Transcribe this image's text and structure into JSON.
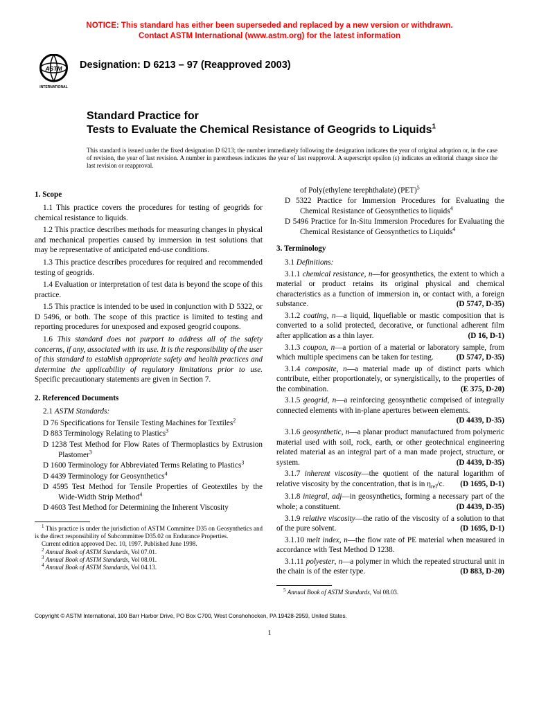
{
  "notice": {
    "line1": "NOTICE: This standard has either been superseded and replaced by a new version or withdrawn.",
    "line2": "Contact ASTM International (www.astm.org) for the latest information"
  },
  "logo": {
    "text_top": "ASTM",
    "text_bottom": "INTERNATIONAL"
  },
  "designation": "Designation: D 6213 – 97 (Reapproved 2003)",
  "title": {
    "pre": "Standard Practice for",
    "main": "Tests to Evaluate the Chemical Resistance of Geogrids to Liquids",
    "super": "1"
  },
  "issuance_note": "This standard is issued under the fixed designation D 6213; the number immediately following the designation indicates the year of original adoption or, in the case of revision, the year of last revision. A number in parentheses indicates the year of last reapproval. A superscript epsilon (ε) indicates an editorial change since the last revision or reapproval.",
  "section1": {
    "head": "1. Scope",
    "p1": "1.1 This practice covers the procedures for testing of geogrids for chemical resistance to liquids.",
    "p2": "1.2 This practice describes methods for measuring changes in physical and mechanical properties caused by immersion in test solutions that may be representative of anticipated end-use conditions.",
    "p3": "1.3 This practice describes procedures for required and recommended testing of geogrids.",
    "p4": "1.4 Evaluation or interpretation of test data is beyond the scope of this practice.",
    "p5": "1.5 This practice is intended to be used in conjunction with D 5322, or D 5496, or both. The scope of this practice is limited to testing and reporting procedures for unexposed and exposed geogrid coupons.",
    "p6a": "1.6 ",
    "p6b_italic": "This standard does not purport to address all of the safety concerns, if any, associated with its use. It is the responsibility of the user of this standard to establish appropriate safety and health practices and determine the applicability of regulatory limitations prior to use.",
    "p6c": " Specific precautionary statements are given in Section 7."
  },
  "section2": {
    "head": "2. Referenced Documents",
    "sub": {
      "num": "2.1",
      "label": "ASTM Standards:"
    },
    "refs": [
      {
        "text": "D 76 Specifications for Tensile Testing Machines for Textiles",
        "sup": "2"
      },
      {
        "text": "D 883 Terminology Relating to Plastics",
        "sup": "3"
      },
      {
        "text": "D 1238 Test Method for Flow Rates of Thermoplastics by Extrusion Plastomer",
        "sup": "3"
      },
      {
        "text": "D 1600 Terminology for Abbreviated Terms Relating to Plastics",
        "sup": "3"
      },
      {
        "text": "D 4439 Terminology for Geosynthetics",
        "sup": "4"
      },
      {
        "text": "D 4595 Test Method for Tensile Properties of Geotextiles by the Wide-Width Strip Method",
        "sup": "4"
      },
      {
        "text": "D 4603 Test Method for Determining the Inherent Viscosity",
        "sup": ""
      }
    ]
  },
  "section2_cont": {
    "refs": [
      {
        "text": "of Poly(ethylene terephthalate) (PET)",
        "sup": "5",
        "indent_only": true
      },
      {
        "text": "D 5322 Practice for Immersion Procedures for Evaluating the Chemical Resistance of Geosynthetics to liquids",
        "sup": "4"
      },
      {
        "text": "D 5496 Practice for In-Situ Immersion Procedures for Evaluating the Chemical Resistance of Geosynthetics to Liquids",
        "sup": "4"
      }
    ]
  },
  "section3": {
    "head": "3. Terminology",
    "sub": {
      "num": "3.1",
      "label": "Definitions:"
    },
    "terms": [
      {
        "num": "3.1.1",
        "word": "chemical resistance",
        "pos": "n",
        "def": "—for geosynthetics, the extent to which a material or product retains its original physical and chemical characteristics as a function of immersion in, or contact with, a foreign substance.",
        "std": "(D 5747, D-35)"
      },
      {
        "num": "3.1.2",
        "word": "coating",
        "pos": "n",
        "def": "—a liquid, liquefiable or mastic composition that is converted to a solid protected, decorative, or functional adherent film after application as a thin layer.",
        "std": "(D 16, D-1)"
      },
      {
        "num": "3.1.3",
        "word": "coupon",
        "pos": "n",
        "def": "—a portion of a material or laboratory sample, from which multiple specimens can be taken for testing.",
        "std": "(D 5747, D-35)"
      },
      {
        "num": "3.1.4",
        "word": "composite",
        "pos": "n",
        "def": "—a material made up of distinct parts which contribute, either proportionately, or synergistically, to the properties of the combination.",
        "std": "(E 375, D-20)"
      },
      {
        "num": "3.1.5",
        "word": "geogrid",
        "pos": "n",
        "def": "—a reinforcing geosynthetic comprised of integrally connected elements with in-plane apertures between elements.",
        "std": "(D 4439, D-35)"
      },
      {
        "num": "3.1.6",
        "word": "geosynthetic",
        "pos": "n",
        "def": "—a planar product manufactured from polymeric material used with soil, rock, earth, or other geotechnical engineering related material as an integral part of a man made project, structure, or system.",
        "std": "(D 4439, D-35)"
      },
      {
        "num": "3.1.7",
        "word": "inherent viscosity",
        "pos": "",
        "def": "—the quotient of the natural logarithm of relative viscosity by the concentration, that is in η_rel/c.",
        "std": "(D 1695, D-1)",
        "sep": ""
      },
      {
        "num": "3.1.8",
        "word": "integral",
        "pos": "adj",
        "def": "—in geosynthetics, forming a necessary part of the whole; a constituent.",
        "std": "(D 4439, D-35)"
      },
      {
        "num": "3.1.9",
        "word": "relative viscosity",
        "pos": "",
        "def": "—the ratio of the viscosity of a solution to that of the pure solvent.",
        "std": "(D 1695, D-1)",
        "sep": ""
      },
      {
        "num": "3.1.10",
        "word": "melt index",
        "pos": "n",
        "def": "—the flow rate of PE material when measured in accordance with Test Method D 1238.",
        "std": ""
      },
      {
        "num": "3.1.11",
        "word": "polyester",
        "pos": "n",
        "def": "—a polymer in which the repeated structural unit in the chain is of the ester type.",
        "std": "(D 883, D-20)"
      }
    ]
  },
  "footnotes_left": [
    {
      "sup": "1",
      "text": " This practice is under the jurisdiction of ASTM Committee D35 on Geosynthetics and is the direct responsibility of Subcommittee D35.02 on Endurance Properties."
    },
    {
      "sup": "",
      "text": "Current edition approved Dec. 10, 1997. Published June 1998."
    },
    {
      "sup": "2",
      "text": " Annual Book of ASTM Standards, Vol 07.01.",
      "italic_part": "Annual Book of ASTM Standards"
    },
    {
      "sup": "3",
      "text": " Annual Book of ASTM Standards, Vol 08.01.",
      "italic_part": "Annual Book of ASTM Standards"
    },
    {
      "sup": "4",
      "text": " Annual Book of ASTM Standards, Vol 04.13.",
      "italic_part": "Annual Book of ASTM Standards"
    }
  ],
  "footnotes_right": [
    {
      "sup": "5",
      "text": " Annual Book of ASTM Standards, Vol 08.03.",
      "italic_part": "Annual Book of ASTM Standards"
    }
  ],
  "copyright": "Copyright © ASTM International, 100 Barr Harbor Drive, PO Box C700, West Conshohocken, PA 19428-2959, United States.",
  "page_number": "1"
}
